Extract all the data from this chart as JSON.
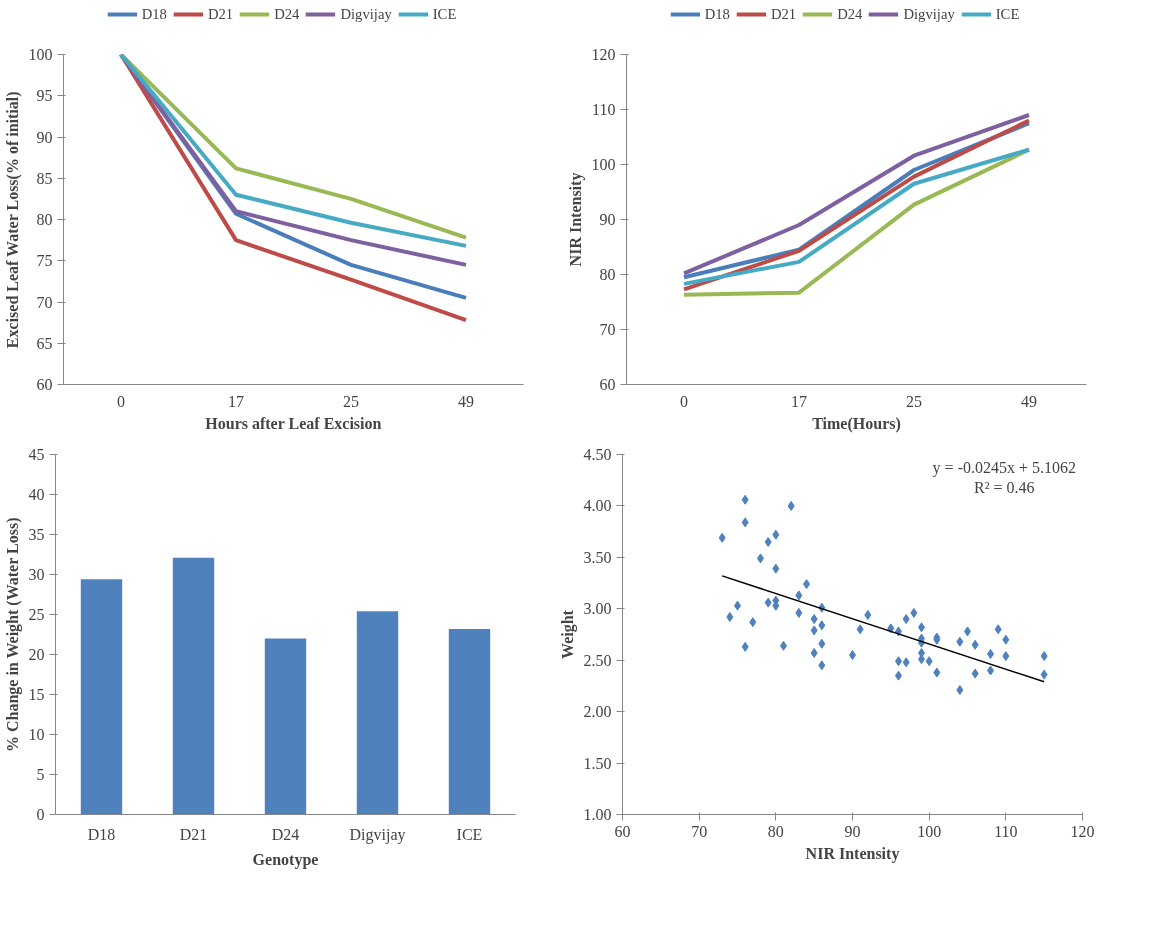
{
  "chart_data": [
    {
      "type": "line",
      "xlabel": "Hours after Leaf Excision",
      "ylabel": "Excised Leaf Water Loss(% of initial)",
      "categories": [
        "0",
        "17",
        "25",
        "49"
      ],
      "ylim": [
        60,
        100
      ],
      "yticks": [
        60,
        65,
        70,
        75,
        80,
        85,
        90,
        95,
        100
      ],
      "legend": "top",
      "grid": false,
      "series": [
        {
          "name": "D18",
          "color": "#4a7ebb",
          "values": [
            100,
            80.7,
            74.5,
            70.5
          ]
        },
        {
          "name": "D21",
          "color": "#be4b48",
          "values": [
            100,
            77.5,
            72.7,
            67.8
          ]
        },
        {
          "name": "D24",
          "color": "#98b954",
          "values": [
            100,
            86.2,
            82.5,
            77.8
          ]
        },
        {
          "name": "Digvijay",
          "color": "#7d60a0",
          "values": [
            100,
            81,
            77.5,
            74.5
          ]
        },
        {
          "name": "ICE",
          "color": "#46aac5",
          "values": [
            100,
            83,
            79.6,
            76.8
          ]
        }
      ]
    },
    {
      "type": "line",
      "xlabel": "Time(Hours)",
      "ylabel": "NIR Intensity",
      "categories": [
        "0",
        "17",
        "25",
        "49"
      ],
      "ylim": [
        60,
        120
      ],
      "yticks": [
        60,
        70,
        80,
        90,
        100,
        110,
        120
      ],
      "legend": "top",
      "grid": false,
      "series": [
        {
          "name": "D18",
          "color": "#4a7ebb",
          "values": [
            79.5,
            84.5,
            99,
            107.5
          ]
        },
        {
          "name": "D21",
          "color": "#be4b48",
          "values": [
            77.3,
            84.3,
            97.8,
            108
          ]
        },
        {
          "name": "D24",
          "color": "#98b954",
          "values": [
            76.3,
            76.7,
            92.7,
            102.7
          ]
        },
        {
          "name": "Digvijay",
          "color": "#7d60a0",
          "values": [
            80.2,
            89,
            101.6,
            109
          ]
        },
        {
          "name": "ICE",
          "color": "#46aac5",
          "values": [
            78.3,
            82.3,
            96.5,
            102.7
          ]
        }
      ]
    },
    {
      "type": "bar",
      "xlabel": "Genotype",
      "ylabel": "% Change in Weight (Water Loss)",
      "categories": [
        "D18",
        "D21",
        "D24",
        "Digvijay",
        "ICE"
      ],
      "ylim": [
        0,
        45
      ],
      "yticks": [
        0,
        5,
        10,
        15,
        20,
        25,
        30,
        35,
        40,
        45
      ],
      "grid": false,
      "series": [
        {
          "color": "#4f81bd",
          "values": [
            29.4,
            32.1,
            22.0,
            25.4,
            23.2
          ]
        }
      ]
    },
    {
      "type": "scatter",
      "xlabel": "NIR Intensity",
      "ylabel": "Weight",
      "xlim": [
        60,
        120
      ],
      "xticks": [
        60,
        70,
        80,
        90,
        100,
        110,
        120
      ],
      "ylim": [
        1,
        4.5
      ],
      "yticks": [
        {
          "value": 1,
          "label": "1.00"
        },
        {
          "value": 1.5,
          "label": "1.50"
        },
        {
          "value": 2,
          "label": "2.00"
        },
        {
          "value": 2.5,
          "label": "2.50"
        },
        {
          "value": 3,
          "label": "3.00"
        },
        {
          "value": 3.5,
          "label": "3.50"
        },
        {
          "value": 4,
          "label": "4.00"
        },
        {
          "value": 4.5,
          "label": "4.50"
        }
      ],
      "grid": false,
      "marker": "diamond",
      "annotations": [
        "y = -0.0245x + 5.1062",
        "R² = 0.46"
      ],
      "series": [
        {
          "color": "#4f81bd",
          "x": [
            73,
            76,
            76,
            82,
            79,
            80,
            78,
            80,
            84,
            83,
            75,
            74,
            76,
            77,
            79,
            80,
            80,
            83,
            85,
            86,
            86,
            85,
            81,
            86,
            85,
            86,
            90,
            91,
            92,
            95,
            96,
            96,
            96,
            97,
            97,
            98,
            99,
            99,
            99,
            99,
            99,
            100,
            101,
            101,
            101,
            104,
            104,
            105,
            106,
            106,
            108,
            108,
            109,
            110,
            110,
            115,
            115
          ],
          "values": [
            3.69,
            4.06,
            3.84,
            4.0,
            3.65,
            3.72,
            3.49,
            3.39,
            3.24,
            3.13,
            3.03,
            2.92,
            2.63,
            2.87,
            3.06,
            3.08,
            3.03,
            2.96,
            2.9,
            3.01,
            2.84,
            2.79,
            2.64,
            2.66,
            2.57,
            2.45,
            2.55,
            2.8,
            2.94,
            2.81,
            2.78,
            2.49,
            2.35,
            2.48,
            2.9,
            2.96,
            2.82,
            2.71,
            2.67,
            2.57,
            2.51,
            2.49,
            2.72,
            2.7,
            2.38,
            2.68,
            2.21,
            2.78,
            2.65,
            2.37,
            2.56,
            2.4,
            2.8,
            2.7,
            2.54,
            2.54,
            2.36
          ]
        },
        {
          "type": "line",
          "color": "#000000",
          "marker": "none",
          "x": [
            73,
            115
          ],
          "values": [
            3.32,
            2.29
          ]
        }
      ]
    }
  ]
}
